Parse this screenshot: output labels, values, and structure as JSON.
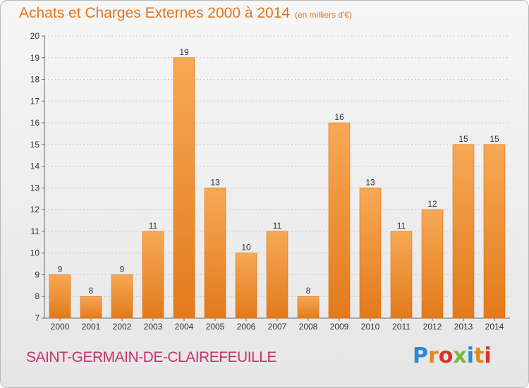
{
  "title": "Achats et Charges Externes 2000 à 2014",
  "unit_note": "(en milliers d'€)",
  "place_name": "SAINT-GERMAIN-DE-CLAIREFEUILLE",
  "logo": {
    "text": "Proxiti",
    "letter_colors": [
      "#2a8ad4",
      "#e08a1e",
      "#d8322a",
      "#7ab83a",
      "#2a8ad4",
      "#e08a1e",
      "#d8322a"
    ]
  },
  "colors": {
    "bar": "#f0882a",
    "bar_light": "#f7a85a",
    "accent": "#e0771d",
    "place": "#c8336d"
  },
  "chart_data": {
    "type": "bar",
    "categories": [
      "2000",
      "2001",
      "2002",
      "2003",
      "2004",
      "2005",
      "2006",
      "2007",
      "2008",
      "2009",
      "2010",
      "2011",
      "2012",
      "2013",
      "2014"
    ],
    "values": [
      9,
      8,
      9,
      11,
      19,
      13,
      10,
      11,
      8,
      16,
      13,
      11,
      12,
      15,
      15
    ],
    "data_labels": [
      "9",
      "8",
      "9",
      "11",
      "19",
      "13",
      "10",
      "11",
      "8",
      "16",
      "13",
      "11",
      "12",
      "15",
      "15"
    ],
    "y_ticks": [
      "7",
      "8",
      "9",
      "10",
      "11",
      "12",
      "13",
      "14",
      "15",
      "16",
      "17",
      "18",
      "19",
      "20"
    ],
    "ylim": [
      7,
      20
    ],
    "grid": true
  }
}
